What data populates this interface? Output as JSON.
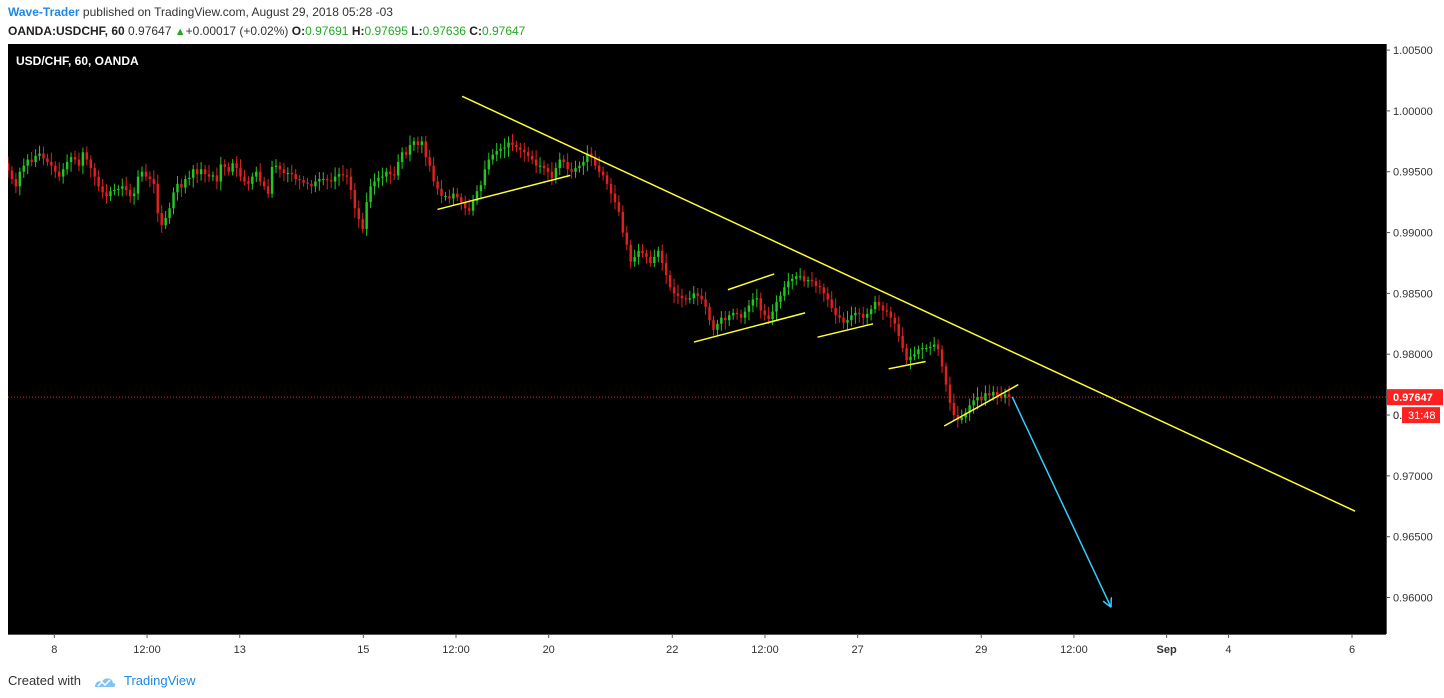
{
  "header": {
    "author": "Wave-Trader",
    "published_text": " published on TradingView.com, August 29, 2018 05:28 -03",
    "symbol": "OANDA:USDCHF, 60",
    "price": "0.97647",
    "change": "+0.00017 (+0.02%)",
    "open_label": "O:",
    "open_value": "0.97691",
    "high_label": "H:",
    "high_value": "0.97695",
    "low_label": "L:",
    "low_value": "0.97636",
    "close_label": "C:",
    "close_value": "0.97647"
  },
  "footer": {
    "created_with": "Created with",
    "brand": "TradingView"
  },
  "colors": {
    "background": "#000000",
    "up_candle": "#22c822",
    "down_candle": "#e02020",
    "trendline": "#ffff33",
    "arrow": "#33ccff",
    "price_line": "#ff2020",
    "axis_bg": "#ffffff"
  },
  "chart_data": {
    "type": "candlestick",
    "title": "USD/CHF, 60, OANDA",
    "y_ticks": [
      "1.00500",
      "1.00000",
      "0.99500",
      "0.99000",
      "0.98500",
      "0.98000",
      "0.97500",
      "0.97000",
      "0.96500",
      "0.96000"
    ],
    "y_tick_values": [
      1.005,
      1.0,
      0.995,
      0.99,
      0.985,
      0.98,
      0.975,
      0.97,
      0.965,
      0.96
    ],
    "ylim": [
      0.957,
      1.0055
    ],
    "x_ticks": [
      {
        "label": "8",
        "slot": 15
      },
      {
        "label": "12:00",
        "slot": 45
      },
      {
        "label": "13",
        "slot": 75
      },
      {
        "label": "15",
        "slot": 115
      },
      {
        "label": "12:00",
        "slot": 145
      },
      {
        "label": "20",
        "slot": 175
      },
      {
        "label": "22",
        "slot": 215
      },
      {
        "label": "12:00",
        "slot": 245
      },
      {
        "label": "27",
        "slot": 275
      },
      {
        "label": "29",
        "slot": 315
      },
      {
        "label": "12:00",
        "slot": 345
      },
      {
        "label": "Sep",
        "slot": 375
      },
      {
        "label": "4",
        "slot": 395
      },
      {
        "label": "6",
        "slot": 435
      }
    ],
    "x_slots": 446,
    "current_price": {
      "label": "0.97647",
      "value": 0.97647
    },
    "countdown": "31:48",
    "partial_tick_label": "0.",
    "close_series": [
      0.9951,
      0.9944,
      0.9938,
      0.995,
      0.9955,
      0.996,
      0.9958,
      0.9963,
      0.9965,
      0.9961,
      0.9958,
      0.9955,
      0.995,
      0.9946,
      0.9952,
      0.9958,
      0.9962,
      0.996,
      0.9955,
      0.9966,
      0.996,
      0.9953,
      0.9946,
      0.9938,
      0.9933,
      0.993,
      0.9934,
      0.9935,
      0.9936,
      0.9938,
      0.9935,
      0.993,
      0.9932,
      0.9946,
      0.995,
      0.9946,
      0.9944,
      0.994,
      0.9916,
      0.9906,
      0.9912,
      0.992,
      0.9933,
      0.994,
      0.9937,
      0.9944,
      0.9945,
      0.9952,
      0.9948,
      0.9952,
      0.9948,
      0.9946,
      0.9947,
      0.9942,
      0.9956,
      0.9954,
      0.995,
      0.9957,
      0.9953,
      0.9946,
      0.9942,
      0.994,
      0.9946,
      0.995,
      0.9942,
      0.9938,
      0.9932,
      0.9954,
      0.9955,
      0.9952,
      0.9949,
      0.9949,
      0.9948,
      0.9944,
      0.9943,
      0.9941,
      0.994,
      0.9938,
      0.9942,
      0.9944,
      0.9944,
      0.9943,
      0.9942,
      0.9946,
      0.9948,
      0.9947,
      0.9946,
      0.9935,
      0.992,
      0.9911,
      0.9903,
      0.9925,
      0.9938,
      0.9942,
      0.9945,
      0.9946,
      0.995,
      0.9948,
      0.9947,
      0.9958,
      0.9966,
      0.9964,
      0.9972,
      0.9975,
      0.9972,
      0.9975,
      0.9962,
      0.9955,
      0.9942,
      0.9936,
      0.993,
      0.993,
      0.9928,
      0.9932,
      0.9929,
      0.9925,
      0.992,
      0.9918,
      0.9926,
      0.9934,
      0.9939,
      0.9952,
      0.996,
      0.9964,
      0.9967,
      0.9969,
      0.997,
      0.9974,
      0.9972,
      0.997,
      0.9968,
      0.9966,
      0.9963,
      0.996,
      0.9955,
      0.9955,
      0.9953,
      0.995,
      0.9945,
      0.9953,
      0.996,
      0.9958,
      0.9952,
      0.995,
      0.9953,
      0.9955,
      0.9958,
      0.9965,
      0.9962,
      0.9955,
      0.995,
      0.9947,
      0.994,
      0.9932,
      0.9925,
      0.9917,
      0.99,
      0.989,
      0.9876,
      0.988,
      0.9885,
      0.9883,
      0.988,
      0.9875,
      0.988,
      0.9885,
      0.9875,
      0.9865,
      0.9855,
      0.985,
      0.9848,
      0.9846,
      0.9845,
      0.9846,
      0.985,
      0.9848,
      0.9845,
      0.9839,
      0.9828,
      0.982,
      0.9825,
      0.983,
      0.9828,
      0.9832,
      0.9834,
      0.9833,
      0.983,
      0.9835,
      0.984,
      0.9845,
      0.9846,
      0.9836,
      0.9832,
      0.9829,
      0.9835,
      0.9843,
      0.9848,
      0.9855,
      0.986,
      0.9862,
      0.9864,
      0.9864,
      0.986,
      0.9861,
      0.986,
      0.9856,
      0.9855,
      0.985,
      0.9845,
      0.9838,
      0.9832,
      0.983,
      0.9826,
      0.9828,
      0.9832,
      0.9834,
      0.9833,
      0.983,
      0.9833,
      0.9837,
      0.9843,
      0.984,
      0.9836,
      0.9835,
      0.983,
      0.9825,
      0.9815,
      0.9805,
      0.9795,
      0.9798,
      0.98,
      0.9804,
      0.9805,
      0.9805,
      0.9806,
      0.9808,
      0.9804,
      0.979,
      0.9775,
      0.976,
      0.975,
      0.9746,
      0.9748,
      0.9752,
      0.9758,
      0.9762,
      0.9765,
      0.9762,
      0.9768,
      0.9766,
      0.9769,
      0.9766,
      0.9764,
      0.9767,
      0.9765
    ],
    "series_start_slot": 0,
    "series_end_slot": 324,
    "trendlines": [
      {
        "from": {
          "slot": 147,
          "value": 1.0012
        },
        "to": {
          "slot": 436,
          "value": 0.9671
        }
      },
      {
        "from": {
          "slot": 139,
          "value": 0.9919
        },
        "to": {
          "slot": 182,
          "value": 0.9947
        }
      },
      {
        "from": {
          "slot": 222,
          "value": 0.981
        },
        "to": {
          "slot": 258,
          "value": 0.9834
        }
      },
      {
        "from": {
          "slot": 233,
          "value": 0.9853
        },
        "to": {
          "slot": 248,
          "value": 0.9866
        }
      },
      {
        "from": {
          "slot": 262,
          "value": 0.9814
        },
        "to": {
          "slot": 280,
          "value": 0.9825
        }
      },
      {
        "from": {
          "slot": 285,
          "value": 0.9788
        },
        "to": {
          "slot": 297,
          "value": 0.9794
        }
      },
      {
        "from": {
          "slot": 303,
          "value": 0.9741
        },
        "to": {
          "slot": 327,
          "value": 0.9775
        }
      }
    ],
    "projection_arrow": {
      "from": {
        "slot": 325,
        "value": 0.9765
      },
      "to": {
        "slot": 357,
        "value": 0.9592
      }
    }
  }
}
